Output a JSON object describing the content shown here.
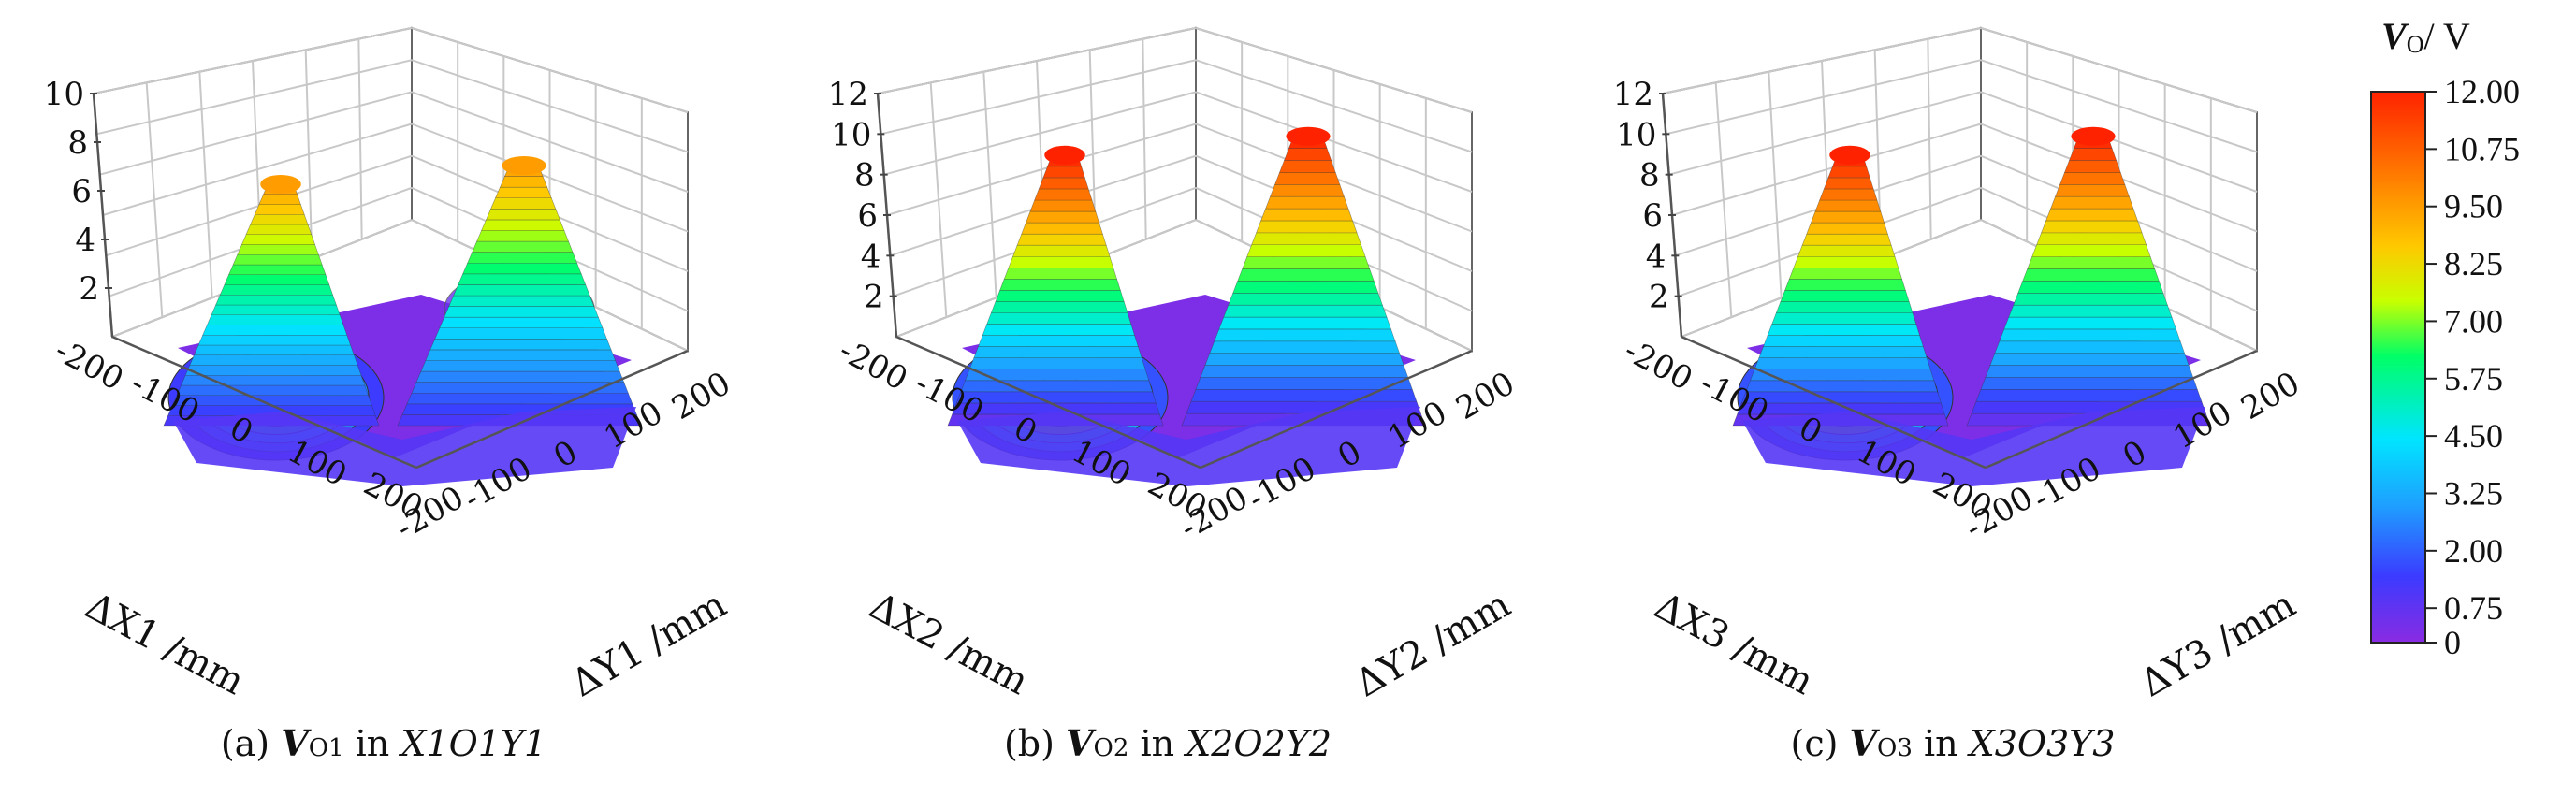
{
  "colorbar": {
    "title": "VO/ V",
    "title_var": "V",
    "title_sub": "O",
    "title_unit": "/ V",
    "ticks": [
      "12.00",
      "10.75",
      "9.50",
      "8.25",
      "7.00",
      "5.75",
      "4.50",
      "3.25",
      "2.00",
      "0.75",
      "0"
    ],
    "range": [
      0,
      12
    ],
    "colors": [
      "#8a2be2",
      "#3b3bff",
      "#1ea0ff",
      "#00e5ff",
      "#00ff66",
      "#c8ff00",
      "#ffc800",
      "#ff7a00",
      "#ff2200"
    ]
  },
  "chart_data": [
    {
      "type": "surface3d",
      "id": "a",
      "caption_prefix": "(a) ",
      "caption_var": "V",
      "caption_sub": "O1",
      "caption_mid": " in ",
      "caption_plane": "X1O1Y1",
      "title": "(a) VO1 in X1O1Y1",
      "xlabel": "ΔX1 /mm",
      "ylabel": "ΔY1 /mm",
      "zlabel": "",
      "x_ticks": [
        "-200",
        "-100",
        "0",
        "100",
        "200"
      ],
      "y_ticks": [
        "200",
        "100",
        "0",
        "-100",
        "-200"
      ],
      "z_ticks": [
        "10",
        "8",
        "6",
        "4",
        "2"
      ],
      "xlim": [
        -200,
        200
      ],
      "ylim": [
        -200,
        200
      ],
      "zlim": [
        0,
        10
      ],
      "peak_value": 9.5,
      "min_value": 1.0
    },
    {
      "type": "surface3d",
      "id": "b",
      "caption_prefix": "(b) ",
      "caption_var": "V",
      "caption_sub": "O2",
      "caption_mid": " in ",
      "caption_plane": "X2O2Y2",
      "title": "(b) VO2 in X2O2Y2",
      "xlabel": "ΔX2 /mm",
      "ylabel": "ΔY2 /mm",
      "zlabel": "",
      "x_ticks": [
        "-200",
        "-100",
        "0",
        "100",
        "200"
      ],
      "y_ticks": [
        "200",
        "100",
        "0",
        "-100",
        "-200"
      ],
      "z_ticks": [
        "12",
        "10",
        "8",
        "6",
        "4",
        "2"
      ],
      "xlim": [
        -200,
        200
      ],
      "ylim": [
        -200,
        200
      ],
      "zlim": [
        0,
        12
      ],
      "peak_value": 12.0,
      "min_value": 0.5
    },
    {
      "type": "surface3d",
      "id": "c",
      "caption_prefix": "(c) ",
      "caption_var": "V",
      "caption_sub": "O3",
      "caption_mid": " in ",
      "caption_plane": "X3O3Y3",
      "title": "(c) VO3 in X3O3Y3",
      "xlabel": "ΔX3 /mm",
      "ylabel": "ΔY3 /mm",
      "zlabel": "",
      "x_ticks": [
        "-200",
        "-100",
        "0",
        "100",
        "200"
      ],
      "y_ticks": [
        "200",
        "100",
        "0",
        "-100",
        "-200"
      ],
      "z_ticks": [
        "12",
        "10",
        "8",
        "6",
        "4",
        "2"
      ],
      "xlim": [
        -200,
        200
      ],
      "ylim": [
        -200,
        200
      ],
      "zlim": [
        0,
        12
      ],
      "peak_value": 12.0,
      "min_value": 0.5
    }
  ]
}
